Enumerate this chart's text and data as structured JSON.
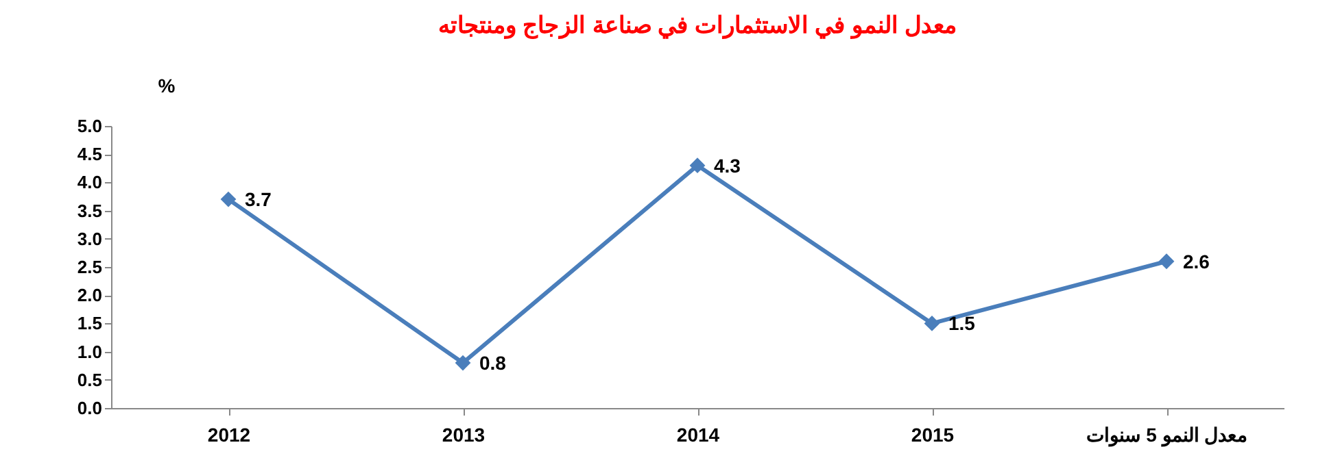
{
  "chart_data": {
    "type": "line",
    "title": "معدل النمو في الاستثمارات في صناعة الزجاج ومنتجاته",
    "ylabel": "%",
    "categories": [
      "2012",
      "2013",
      "2014",
      "2015",
      "معدل النمو 5 سنوات"
    ],
    "series": [
      {
        "color": "#4a7ebb",
        "values": [
          3.7,
          0.8,
          4.3,
          1.5,
          2.6
        ]
      }
    ],
    "ylim": [
      0,
      5
    ],
    "yticks": [
      {
        "value": 0,
        "label": "0.0"
      },
      {
        "value": 0.5,
        "label": "0.5"
      },
      {
        "value": 1,
        "label": "1.0"
      },
      {
        "value": 1.5,
        "label": "1.5"
      },
      {
        "value": 2,
        "label": "2.0"
      },
      {
        "value": 2.5,
        "label": "2.5"
      },
      {
        "value": 3,
        "label": "3.0"
      },
      {
        "value": 3.5,
        "label": "3.5"
      },
      {
        "value": 4,
        "label": "4.0"
      },
      {
        "value": 4.5,
        "label": "4.5"
      },
      {
        "value": 5,
        "label": "5.0"
      }
    ],
    "grid": false,
    "legend": false,
    "marker": "diamond",
    "line_style": "solid",
    "data_labels": true
  }
}
